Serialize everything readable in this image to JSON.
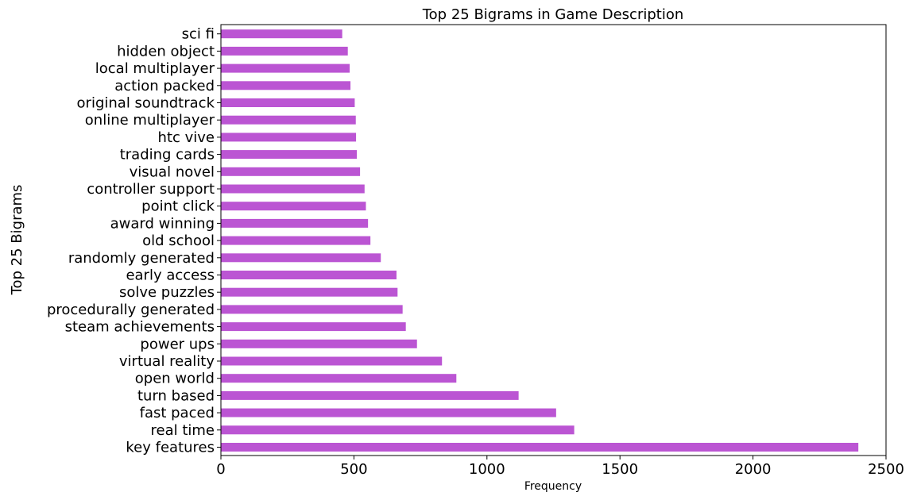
{
  "chart_data": {
    "type": "bar",
    "orientation": "horizontal",
    "title": "Top 25 Bigrams in Game Description",
    "xlabel": "Frequency",
    "ylabel": "Top 25 Bigrams",
    "xlim": [
      0,
      2500
    ],
    "xticks": [
      0,
      500,
      1000,
      1500,
      2000,
      2500
    ],
    "grid": false,
    "bar_color": "#bb55d3",
    "categories": [
      "key features",
      "real time",
      "fast paced",
      "turn based",
      "open world",
      "virtual reality",
      "power ups",
      "steam achievements",
      "procedurally generated",
      "solve puzzles",
      "early access",
      "randomly generated",
      "old school",
      "award winning",
      "point click",
      "controller support",
      "visual novel",
      "trading cards",
      "htc vive",
      "online multiplayer",
      "original soundtrack",
      "action packed",
      "local multiplayer",
      "hidden object",
      "sci fi"
    ],
    "values": [
      2396,
      1328,
      1260,
      1119,
      885,
      831,
      737,
      695,
      683,
      664,
      660,
      601,
      562,
      553,
      545,
      540,
      523,
      511,
      508,
      507,
      503,
      487,
      484,
      477,
      456
    ]
  }
}
